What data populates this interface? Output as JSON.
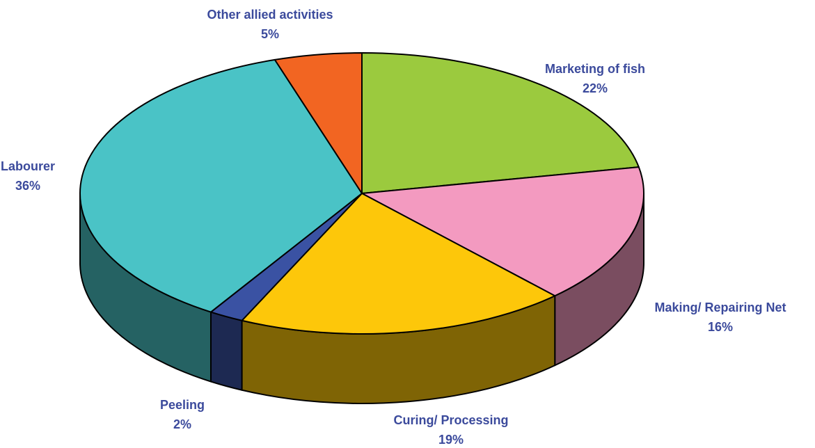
{
  "chart_data": {
    "type": "pie",
    "categories": [
      "Marketing of fish",
      "Making/ Repairing Net",
      "Curing/ Processing",
      "Peeling",
      "Labourer",
      "Other allied activities"
    ],
    "values": [
      22,
      16,
      19,
      2,
      36,
      5
    ],
    "value_labels": [
      "22%",
      "16%",
      "19%",
      "2%",
      "36%",
      "5%"
    ],
    "colors": [
      "#9bca3e",
      "#f39ac0",
      "#fdc70a",
      "#3a52a3",
      "#4ac3c6",
      "#f26522"
    ]
  }
}
